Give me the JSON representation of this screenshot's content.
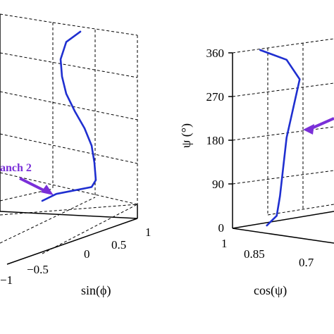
{
  "chart_data": [
    {
      "type": "line",
      "panel": "left",
      "xlabel": "sin(ϕ)",
      "sin_ticks": [
        "−1",
        "−0.5",
        "0",
        "0.5",
        "1"
      ],
      "annotation": "anch 2",
      "series": [
        {
          "color": "#1f2fd0",
          "points": [
            [
              0.72,
              0.98
            ],
            [
              0.62,
              0.92
            ],
            [
              0.58,
              0.82
            ],
            [
              0.59,
              0.72
            ],
            [
              0.62,
              0.62
            ],
            [
              0.68,
              0.52
            ],
            [
              0.75,
              0.42
            ],
            [
              0.8,
              0.32
            ],
            [
              0.82,
              0.22
            ],
            [
              0.83,
              0.12
            ],
            [
              0.8,
              0.08
            ],
            [
              0.55,
              0.04
            ],
            [
              0.45,
              0.0
            ]
          ]
        }
      ]
    },
    {
      "type": "line",
      "panel": "right",
      "ylabel": "ψ (°)",
      "xlabel": "cos(ψ)",
      "psi_ticks": [
        "0",
        "90",
        "180",
        "270",
        "360"
      ],
      "cos_ticks": [
        "1",
        "0.85",
        "0.7"
      ],
      "psi_range": [
        0,
        360
      ],
      "series": [
        {
          "color": "#1f2fd0",
          "points": [
            [
              0.98,
              360
            ],
            [
              0.9,
              340
            ],
            [
              0.86,
              300
            ],
            [
              0.88,
              240
            ],
            [
              0.9,
              180
            ],
            [
              0.91,
              120
            ],
            [
              0.92,
              60
            ],
            [
              0.93,
              20
            ],
            [
              0.96,
              0
            ]
          ]
        }
      ]
    }
  ]
}
